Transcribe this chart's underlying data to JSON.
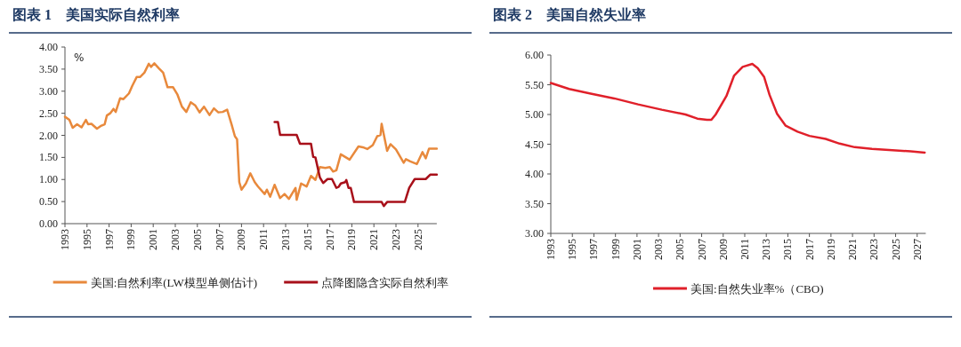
{
  "chart_data": [
    {
      "type": "line",
      "title": "图表 1　美国实际自然利率",
      "ylabel": "%",
      "xlim": [
        1993,
        2026.7
      ],
      "ylim": [
        0,
        4
      ],
      "xticks": [
        1993,
        1995,
        1997,
        1999,
        2001,
        2003,
        2005,
        2007,
        2009,
        2011,
        2013,
        2015,
        2017,
        2019,
        2021,
        2023,
        2025
      ],
      "yticks": [
        {
          "value": 0,
          "label": "0.00"
        },
        {
          "value": 0.5,
          "label": "0.50"
        },
        {
          "value": 1,
          "label": "1.00"
        },
        {
          "value": 1.5,
          "label": "1.50"
        },
        {
          "value": 2,
          "label": "2.00"
        },
        {
          "value": 2.5,
          "label": "2.50"
        },
        {
          "value": 3,
          "label": "3.00"
        },
        {
          "value": 3.5,
          "label": "3.50"
        },
        {
          "value": 4,
          "label": "4.00"
        }
      ],
      "legend": "bottom",
      "grid": false,
      "series": [
        {
          "name": "美国:自然利率(LW模型单侧估计)",
          "color": "#e8893c",
          "x": [
            1993.0,
            1993.4,
            1993.7,
            1994.1,
            1994.5,
            1994.9,
            1995.1,
            1995.4,
            1995.9,
            1996.3,
            1996.6,
            1996.8,
            1997.1,
            1997.4,
            1997.6,
            1998.0,
            1998.3,
            1998.8,
            1999.1,
            1999.5,
            1999.8,
            2000.2,
            2000.6,
            2000.8,
            2001.1,
            2001.5,
            2001.9,
            2002.3,
            2002.8,
            2003.2,
            2003.6,
            2004.0,
            2004.4,
            2004.8,
            2005.2,
            2005.6,
            2006.1,
            2006.5,
            2006.9,
            2007.3,
            2007.7,
            2008.1,
            2008.4,
            2008.6,
            2008.8,
            2009.0,
            2009.4,
            2009.8,
            2010.2,
            2010.5,
            2011.1,
            2011.3,
            2011.6,
            2012.0,
            2012.5,
            2012.9,
            2013.3,
            2013.9,
            2014.0,
            2014.4,
            2014.9,
            2015.3,
            2015.7,
            2016.1,
            2016.6,
            2017.0,
            2017.3,
            2017.6,
            2018.0,
            2018.4,
            2018.8,
            2019.6,
            2020.0,
            2020.4,
            2020.9,
            2021.3,
            2021.6,
            2021.7,
            2022.2,
            2022.5,
            2023.0,
            2023.7,
            2023.9,
            2024.3,
            2024.9,
            2025.4,
            2025.7,
            2026.0,
            2026.7
          ],
          "values": [
            2.42,
            2.35,
            2.17,
            2.25,
            2.18,
            2.35,
            2.25,
            2.26,
            2.15,
            2.22,
            2.25,
            2.45,
            2.5,
            2.6,
            2.53,
            2.84,
            2.82,
            2.95,
            3.12,
            3.32,
            3.32,
            3.42,
            3.62,
            3.55,
            3.63,
            3.52,
            3.42,
            3.09,
            3.09,
            2.92,
            2.65,
            2.53,
            2.75,
            2.68,
            2.52,
            2.65,
            2.46,
            2.61,
            2.52,
            2.53,
            2.58,
            2.25,
            1.98,
            1.91,
            0.94,
            0.77,
            0.91,
            1.14,
            0.94,
            0.84,
            0.67,
            0.77,
            0.61,
            0.88,
            0.58,
            0.67,
            0.56,
            0.81,
            0.54,
            0.91,
            0.84,
            1.08,
            0.99,
            1.28,
            1.26,
            1.28,
            1.18,
            1.21,
            1.57,
            1.51,
            1.45,
            1.75,
            1.73,
            1.69,
            1.78,
            1.98,
            2.01,
            2.26,
            1.65,
            1.8,
            1.68,
            1.38,
            1.46,
            1.41,
            1.35,
            1.62,
            1.48,
            1.7,
            1.7
          ]
        },
        {
          "name": "点降图隐含实际自然利率",
          "color": "#a8101a",
          "x": [
            2012.0,
            2012.3,
            2012.5,
            2014.0,
            2014.3,
            2015.3,
            2015.5,
            2015.7,
            2016.1,
            2016.4,
            2016.8,
            2017.2,
            2017.6,
            2017.8,
            2018.0,
            2018.4,
            2018.5,
            2018.7,
            2018.9,
            2019.2,
            2021.7,
            2021.9,
            2022.2,
            2023.8,
            2024.2,
            2024.7,
            2025.7,
            2026.1,
            2026.7
          ],
          "values": [
            2.3,
            2.3,
            2.01,
            2.01,
            1.81,
            1.81,
            1.51,
            1.5,
            1.05,
            0.92,
            1.01,
            1.01,
            0.81,
            0.83,
            0.91,
            0.94,
            0.99,
            0.81,
            0.81,
            0.49,
            0.49,
            0.4,
            0.49,
            0.49,
            0.81,
            1.01,
            1.01,
            1.11,
            1.11
          ]
        }
      ]
    },
    {
      "type": "line",
      "title": "图表 2　美国自然失业率",
      "xlim": [
        1993,
        2027.8
      ],
      "ylim": [
        3,
        6
      ],
      "xticks": [
        1993,
        1995,
        1997,
        1999,
        2001,
        2003,
        2005,
        2007,
        2009,
        2011,
        2013,
        2015,
        2017,
        2019,
        2021,
        2023,
        2025,
        2027
      ],
      "yticks": [
        {
          "value": 3,
          "label": "3.00"
        },
        {
          "value": 3.5,
          "label": "3.50"
        },
        {
          "value": 4,
          "label": "4.00"
        },
        {
          "value": 4.5,
          "label": "4.50"
        },
        {
          "value": 5,
          "label": "5.00"
        },
        {
          "value": 5.5,
          "label": "5.50"
        },
        {
          "value": 6,
          "label": "6.00"
        }
      ],
      "legend": "bottom",
      "grid": false,
      "series": [
        {
          "name": "美国:自然失业率%（CBO)",
          "color": "#e0202a",
          "x": [
            1993.0,
            1994.7,
            1996.7,
            1998.9,
            2001.1,
            2003.3,
            2005.5,
            2006.6,
            2007.5,
            2007.9,
            2008.3,
            2009.3,
            2010.0,
            2010.8,
            2011.7,
            2012.2,
            2012.8,
            2013.3,
            2014.0,
            2014.8,
            2015.9,
            2017.0,
            2018.5,
            2019.8,
            2021.2,
            2022.8,
            2024.7,
            2026.4,
            2027.7
          ],
          "values": [
            5.53,
            5.43,
            5.35,
            5.27,
            5.17,
            5.08,
            5.0,
            4.93,
            4.91,
            4.91,
            5.0,
            5.31,
            5.65,
            5.8,
            5.85,
            5.78,
            5.63,
            5.33,
            5.01,
            4.81,
            4.71,
            4.64,
            4.59,
            4.51,
            4.45,
            4.42,
            4.4,
            4.38,
            4.36
          ]
        }
      ]
    }
  ]
}
